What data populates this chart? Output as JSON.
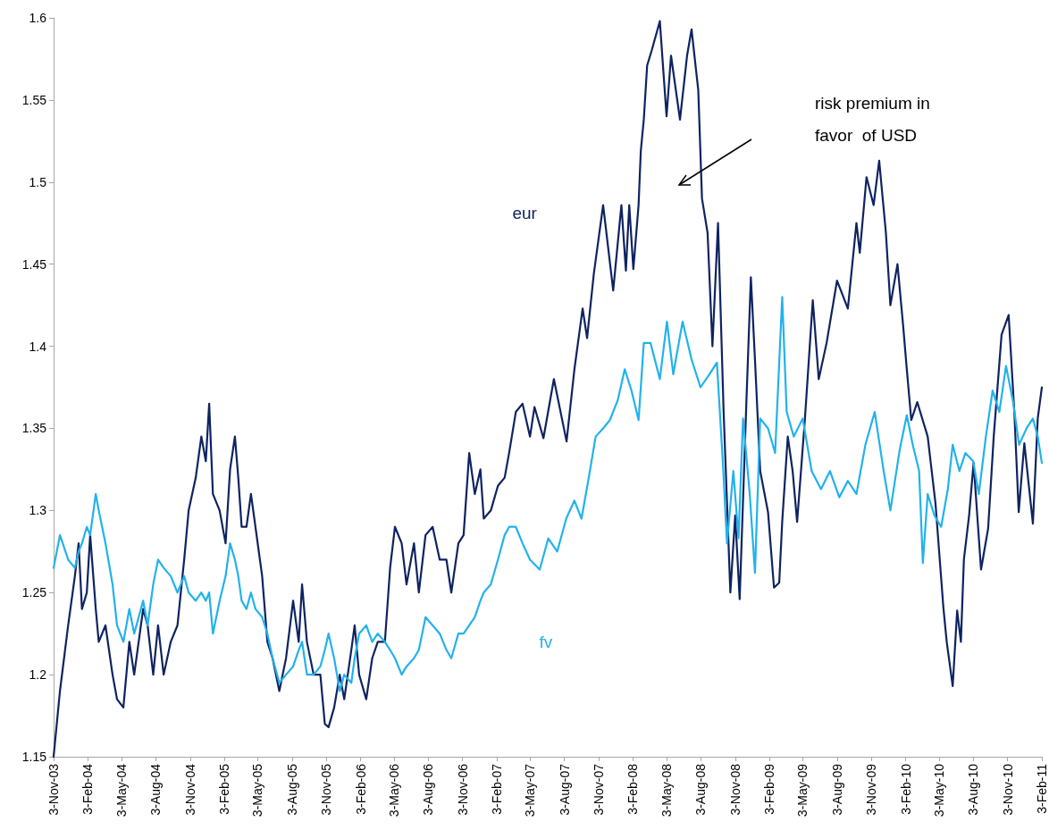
{
  "chart_data": {
    "type": "line",
    "marker": "none",
    "line_style": "solid",
    "grid": false,
    "legend": false,
    "annotations": [
      "risk premium in\nfavor  of USD"
    ],
    "xlim": [
      "2003-11-03",
      "2011-02-03"
    ],
    "xticks": [
      {
        "value": "2003-11-03",
        "label": "3-Nov-03"
      },
      {
        "value": "2004-02-03",
        "label": "3-Feb-04"
      },
      {
        "value": "2004-05-03",
        "label": "3-May-04"
      },
      {
        "value": "2004-08-03",
        "label": "3-Aug-04"
      },
      {
        "value": "2004-11-03",
        "label": "3-Nov-04"
      },
      {
        "value": "2005-02-03",
        "label": "3-Feb-05"
      },
      {
        "value": "2005-05-03",
        "label": "3-May-05"
      },
      {
        "value": "2005-08-03",
        "label": "3-Aug-05"
      },
      {
        "value": "2005-11-03",
        "label": "3-Nov-05"
      },
      {
        "value": "2006-02-03",
        "label": "3-Feb-06"
      },
      {
        "value": "2006-05-03",
        "label": "3-May-06"
      },
      {
        "value": "2006-08-03",
        "label": "3-Aug-06"
      },
      {
        "value": "2006-11-03",
        "label": "3-Nov-06"
      },
      {
        "value": "2007-02-03",
        "label": "3-Feb-07"
      },
      {
        "value": "2007-05-03",
        "label": "3-May-07"
      },
      {
        "value": "2007-08-03",
        "label": "3-Aug-07"
      },
      {
        "value": "2007-11-03",
        "label": "3-Nov-07"
      },
      {
        "value": "2008-02-03",
        "label": "3-Feb-08"
      },
      {
        "value": "2008-05-03",
        "label": "3-May-08"
      },
      {
        "value": "2008-08-03",
        "label": "3-Aug-08"
      },
      {
        "value": "2008-11-03",
        "label": "3-Nov-08"
      },
      {
        "value": "2009-02-03",
        "label": "3-Feb-09"
      },
      {
        "value": "2009-05-03",
        "label": "3-May-09"
      },
      {
        "value": "2009-08-03",
        "label": "3-Aug-09"
      },
      {
        "value": "2009-11-03",
        "label": "3-Nov-09"
      },
      {
        "value": "2010-02-03",
        "label": "3-Feb-10"
      },
      {
        "value": "2010-05-03",
        "label": "3-May-10"
      },
      {
        "value": "2010-08-03",
        "label": "3-Aug-10"
      },
      {
        "value": "2010-11-03",
        "label": "3-Nov-10"
      },
      {
        "value": "2011-02-03",
        "label": "3-Feb-11"
      }
    ],
    "ylim": [
      1.15,
      1.6
    ],
    "yticks": [
      1.15,
      1.2,
      1.25,
      1.3,
      1.35,
      1.4,
      1.45,
      1.5,
      1.55,
      1.6
    ],
    "series": [
      {
        "name": "eur",
        "color": "#0e2361",
        "x": [
          "2003-11-03",
          "2003-11-20",
          "2003-12-12",
          "2003-12-30",
          "2004-01-09",
          "2004-01-18",
          "2004-01-31",
          "2004-02-09",
          "2004-02-24",
          "2004-03-03",
          "2004-03-21",
          "2004-04-09",
          "2004-04-21",
          "2004-05-08",
          "2004-05-24",
          "2004-06-06",
          "2004-06-30",
          "2004-07-12",
          "2004-07-27",
          "2004-08-09",
          "2004-08-24",
          "2004-09-12",
          "2004-09-30",
          "2004-10-18",
          "2004-10-30",
          "2004-11-18",
          "2004-12-03",
          "2004-12-15",
          "2004-12-24",
          "2005-01-03",
          "2005-01-21",
          "2005-02-06",
          "2005-02-18",
          "2005-03-03",
          "2005-03-12",
          "2005-03-21",
          "2005-04-03",
          "2005-04-15",
          "2005-04-27",
          "2005-05-15",
          "2005-05-29",
          "2005-06-12",
          "2005-06-30",
          "2005-07-18",
          "2005-08-06",
          "2005-08-21",
          "2005-08-30",
          "2005-09-12",
          "2005-09-30",
          "2005-10-18",
          "2005-10-30",
          "2005-11-09",
          "2005-11-24",
          "2005-12-09",
          "2005-12-21",
          "2006-01-09",
          "2006-01-18",
          "2006-01-30",
          "2006-02-18",
          "2006-03-06",
          "2006-03-21",
          "2006-04-09",
          "2006-04-23",
          "2006-05-06",
          "2006-05-24",
          "2006-06-06",
          "2006-06-26",
          "2006-07-09",
          "2006-07-27",
          "2006-08-15",
          "2006-09-03",
          "2006-09-21",
          "2006-10-04",
          "2006-10-23",
          "2006-11-06",
          "2006-11-21",
          "2006-12-06",
          "2006-12-21",
          "2006-12-30",
          "2007-01-18",
          "2007-02-06",
          "2007-02-24",
          "2007-03-08",
          "2007-03-26",
          "2007-04-13",
          "2007-05-03",
          "2007-05-15",
          "2007-06-08",
          "2007-07-06",
          "2007-08-09",
          "2007-08-30",
          "2007-09-21",
          "2007-10-03",
          "2007-10-21",
          "2007-11-15",
          "2007-12-12",
          "2008-01-03",
          "2008-01-15",
          "2008-01-24",
          "2008-02-04",
          "2008-02-18",
          "2008-02-24",
          "2008-03-03",
          "2008-03-12",
          "2008-03-24",
          "2008-04-15",
          "2008-05-03",
          "2008-05-15",
          "2008-06-08",
          "2008-06-27",
          "2008-07-09",
          "2008-07-27",
          "2008-08-06",
          "2008-08-21",
          "2008-09-03",
          "2008-09-18",
          "2008-10-03",
          "2008-10-21",
          "2008-11-03",
          "2008-11-15",
          "2008-11-24",
          "2008-12-03",
          "2008-12-15",
          "2008-12-26",
          "2009-01-09",
          "2009-01-30",
          "2009-02-15",
          "2009-03-01",
          "2009-03-09",
          "2009-03-24",
          "2009-04-06",
          "2009-04-18",
          "2009-05-09",
          "2009-05-30",
          "2009-06-15",
          "2009-07-06",
          "2009-08-03",
          "2009-09-01",
          "2009-09-24",
          "2009-10-03",
          "2009-10-21",
          "2009-11-09",
          "2009-11-24",
          "2009-12-12",
          "2009-12-24",
          "2010-01-12",
          "2010-01-27",
          "2010-02-06",
          "2010-02-18",
          "2010-03-06",
          "2010-04-03",
          "2010-04-24",
          "2010-05-15",
          "2010-05-24",
          "2010-06-09",
          "2010-06-21",
          "2010-07-01",
          "2010-07-09",
          "2010-07-23",
          "2010-08-04",
          "2010-08-24",
          "2010-09-12",
          "2010-09-27",
          "2010-10-18",
          "2010-11-06",
          "2010-11-21",
          "2010-12-03",
          "2010-12-18",
          "2011-01-10",
          "2011-01-23",
          "2011-02-03"
        ],
        "values": [
          1.15,
          1.19,
          1.23,
          1.26,
          1.28,
          1.24,
          1.25,
          1.285,
          1.24,
          1.22,
          1.23,
          1.2,
          1.185,
          1.18,
          1.22,
          1.2,
          1.24,
          1.23,
          1.2,
          1.23,
          1.2,
          1.22,
          1.23,
          1.27,
          1.3,
          1.32,
          1.345,
          1.33,
          1.365,
          1.31,
          1.3,
          1.28,
          1.325,
          1.345,
          1.32,
          1.29,
          1.29,
          1.31,
          1.29,
          1.26,
          1.22,
          1.21,
          1.19,
          1.21,
          1.245,
          1.22,
          1.255,
          1.22,
          1.2,
          1.2,
          1.17,
          1.168,
          1.18,
          1.2,
          1.185,
          1.215,
          1.23,
          1.2,
          1.185,
          1.21,
          1.22,
          1.22,
          1.265,
          1.29,
          1.28,
          1.255,
          1.28,
          1.25,
          1.285,
          1.29,
          1.27,
          1.27,
          1.25,
          1.28,
          1.285,
          1.335,
          1.31,
          1.325,
          1.295,
          1.3,
          1.315,
          1.32,
          1.335,
          1.36,
          1.365,
          1.345,
          1.363,
          1.344,
          1.38,
          1.342,
          1.386,
          1.423,
          1.405,
          1.444,
          1.486,
          1.434,
          1.486,
          1.446,
          1.486,
          1.447,
          1.486,
          1.519,
          1.538,
          1.571,
          1.58,
          1.598,
          1.54,
          1.577,
          1.538,
          1.577,
          1.593,
          1.556,
          1.49,
          1.469,
          1.4,
          1.475,
          1.36,
          1.25,
          1.297,
          1.246,
          1.306,
          1.366,
          1.442,
          1.392,
          1.324,
          1.299,
          1.253,
          1.256,
          1.293,
          1.345,
          1.324,
          1.293,
          1.356,
          1.428,
          1.38,
          1.402,
          1.44,
          1.423,
          1.475,
          1.457,
          1.503,
          1.486,
          1.513,
          1.469,
          1.425,
          1.45,
          1.413,
          1.386,
          1.355,
          1.366,
          1.345,
          1.304,
          1.241,
          1.22,
          1.193,
          1.239,
          1.22,
          1.27,
          1.297,
          1.329,
          1.264,
          1.289,
          1.345,
          1.407,
          1.419,
          1.361,
          1.299,
          1.341,
          1.292,
          1.356,
          1.375
        ]
      },
      {
        "name": "fv",
        "color": "#22b2ec",
        "x": [
          "2003-11-03",
          "2003-11-20",
          "2003-12-12",
          "2003-12-30",
          "2004-01-09",
          "2004-01-18",
          "2004-01-31",
          "2004-02-09",
          "2004-02-24",
          "2004-03-03",
          "2004-03-21",
          "2004-04-09",
          "2004-04-21",
          "2004-05-08",
          "2004-05-24",
          "2004-06-06",
          "2004-06-30",
          "2004-07-12",
          "2004-07-27",
          "2004-08-09",
          "2004-08-24",
          "2004-09-12",
          "2004-09-30",
          "2004-10-18",
          "2004-10-30",
          "2004-11-18",
          "2004-12-03",
          "2004-12-15",
          "2004-12-24",
          "2005-01-03",
          "2005-01-21",
          "2005-02-06",
          "2005-02-18",
          "2005-03-03",
          "2005-03-12",
          "2005-03-21",
          "2005-04-03",
          "2005-04-15",
          "2005-04-27",
          "2005-05-15",
          "2005-05-29",
          "2005-06-12",
          "2005-06-30",
          "2005-07-18",
          "2005-08-06",
          "2005-08-21",
          "2005-08-30",
          "2005-09-12",
          "2005-09-30",
          "2005-10-18",
          "2005-10-30",
          "2005-11-09",
          "2005-11-24",
          "2005-12-09",
          "2005-12-21",
          "2006-01-09",
          "2006-01-18",
          "2006-01-30",
          "2006-02-18",
          "2006-03-06",
          "2006-03-21",
          "2006-04-09",
          "2006-04-23",
          "2006-05-06",
          "2006-05-24",
          "2006-06-06",
          "2006-06-26",
          "2006-07-09",
          "2006-07-27",
          "2006-08-15",
          "2006-09-03",
          "2006-09-21",
          "2006-10-04",
          "2006-10-23",
          "2006-11-06",
          "2006-11-21",
          "2006-12-06",
          "2006-12-21",
          "2006-12-30",
          "2007-01-18",
          "2007-02-06",
          "2007-02-24",
          "2007-03-08",
          "2007-03-26",
          "2007-04-13",
          "2007-05-03",
          "2007-05-29",
          "2007-06-21",
          "2007-07-15",
          "2007-08-08",
          "2007-08-30",
          "2007-09-18",
          "2007-10-06",
          "2007-10-26",
          "2007-11-15",
          "2007-12-03",
          "2007-12-24",
          "2008-01-12",
          "2008-01-30",
          "2008-02-18",
          "2008-03-03",
          "2008-03-21",
          "2008-04-15",
          "2008-05-04",
          "2008-05-21",
          "2008-06-15",
          "2008-07-09",
          "2008-08-02",
          "2008-08-26",
          "2008-09-15",
          "2008-10-01",
          "2008-10-12",
          "2008-10-29",
          "2008-11-12",
          "2008-11-24",
          "2008-12-12",
          "2008-12-26",
          "2009-01-09",
          "2009-01-30",
          "2009-02-18",
          "2009-03-09",
          "2009-03-21",
          "2009-04-09",
          "2009-05-03",
          "2009-05-27",
          "2009-06-21",
          "2009-07-15",
          "2009-08-09",
          "2009-09-01",
          "2009-09-24",
          "2009-10-18",
          "2009-11-12",
          "2009-12-06",
          "2009-12-24",
          "2010-01-18",
          "2010-02-06",
          "2010-02-21",
          "2010-03-11",
          "2010-03-21",
          "2010-04-03",
          "2010-04-21",
          "2010-05-09",
          "2010-05-27",
          "2010-06-09",
          "2010-06-27",
          "2010-07-13",
          "2010-08-03",
          "2010-08-18",
          "2010-09-06",
          "2010-09-24",
          "2010-10-12",
          "2010-10-30",
          "2010-11-18",
          "2010-12-04",
          "2010-12-24",
          "2011-01-10",
          "2011-01-23",
          "2011-02-03"
        ],
        "values": [
          1.265,
          1.285,
          1.27,
          1.265,
          1.275,
          1.28,
          1.29,
          1.285,
          1.31,
          1.3,
          1.28,
          1.255,
          1.23,
          1.22,
          1.24,
          1.225,
          1.245,
          1.23,
          1.255,
          1.27,
          1.265,
          1.26,
          1.25,
          1.26,
          1.25,
          1.245,
          1.25,
          1.245,
          1.25,
          1.225,
          1.245,
          1.26,
          1.28,
          1.27,
          1.26,
          1.245,
          1.24,
          1.25,
          1.24,
          1.235,
          1.225,
          1.21,
          1.195,
          1.2,
          1.205,
          1.215,
          1.22,
          1.2,
          1.2,
          1.205,
          1.215,
          1.225,
          1.21,
          1.19,
          1.2,
          1.195,
          1.21,
          1.225,
          1.23,
          1.22,
          1.225,
          1.22,
          1.215,
          1.21,
          1.2,
          1.205,
          1.21,
          1.215,
          1.235,
          1.23,
          1.225,
          1.215,
          1.21,
          1.225,
          1.225,
          1.23,
          1.235,
          1.245,
          1.25,
          1.255,
          1.27,
          1.285,
          1.29,
          1.29,
          1.28,
          1.27,
          1.264,
          1.283,
          1.275,
          1.295,
          1.306,
          1.295,
          1.318,
          1.345,
          1.35,
          1.355,
          1.367,
          1.386,
          1.373,
          1.355,
          1.402,
          1.402,
          1.38,
          1.415,
          1.383,
          1.415,
          1.392,
          1.375,
          1.383,
          1.39,
          1.329,
          1.28,
          1.324,
          1.283,
          1.356,
          1.31,
          1.262,
          1.356,
          1.35,
          1.335,
          1.43,
          1.36,
          1.345,
          1.356,
          1.324,
          1.313,
          1.324,
          1.308,
          1.318,
          1.31,
          1.34,
          1.36,
          1.324,
          1.3,
          1.337,
          1.358,
          1.341,
          1.324,
          1.268,
          1.31,
          1.297,
          1.29,
          1.313,
          1.34,
          1.324,
          1.335,
          1.33,
          1.31,
          1.345,
          1.373,
          1.36,
          1.388,
          1.366,
          1.34,
          1.35,
          1.356,
          1.345,
          1.329
        ]
      }
    ]
  }
}
